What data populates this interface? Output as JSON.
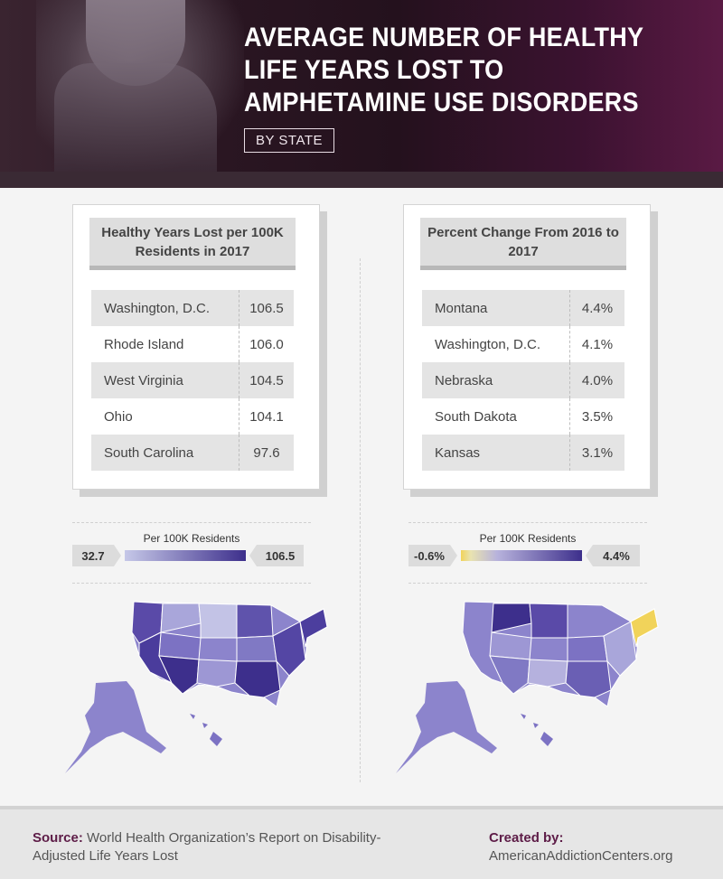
{
  "header": {
    "title": "AVERAGE NUMBER OF HEALTHY LIFE YEARS LOST TO AMPHETAMINE USE DISORDERS",
    "badge": "BY STATE"
  },
  "left_panel": {
    "heading": "Healthy Years Lost per 100K Residents in 2017",
    "rows": [
      {
        "state": "Washington, D.C.",
        "value": "106.5"
      },
      {
        "state": "Rhode Island",
        "value": "106.0"
      },
      {
        "state": "West Virginia",
        "value": "104.5"
      },
      {
        "state": "Ohio",
        "value": "104.1"
      },
      {
        "state": "South Carolina",
        "value": "97.6"
      }
    ],
    "legend": {
      "caption": "Per 100K Residents",
      "min": "32.7",
      "max": "106.5"
    }
  },
  "right_panel": {
    "heading": "Percent Change From 2016 to 2017",
    "rows": [
      {
        "state": "Montana",
        "value": "4.4%"
      },
      {
        "state": "Washington, D.C.",
        "value": "4.1%"
      },
      {
        "state": "Nebraska",
        "value": "4.0%"
      },
      {
        "state": "South Dakota",
        "value": "3.5%"
      },
      {
        "state": "Kansas",
        "value": "3.1%"
      }
    ],
    "legend": {
      "caption": "Per 100K Residents",
      "min": "-0.6%",
      "max": "4.4%"
    }
  },
  "footer": {
    "source_label": "Source:",
    "source_text": "World Health Organization’s Report on Disability-Adjusted Life Years Lost",
    "created_label": "Created by:",
    "created_text": "AmericanAddictionCenters.org"
  },
  "colors": {
    "brand": "#5d1c47",
    "scale_low": "#c6c8e8",
    "scale_high": "#3d2f8c",
    "change_low": "#f1d35a"
  },
  "icons": [
    "us-choropleth-map-years-lost",
    "us-choropleth-map-percent-change"
  ]
}
